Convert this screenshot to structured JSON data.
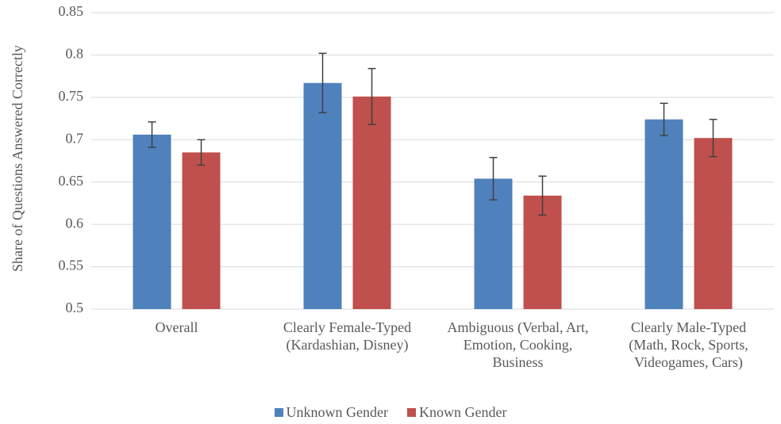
{
  "chart_data": {
    "type": "bar",
    "y_label": "Share of Questions Answered Correctly",
    "categories": [
      "Overall",
      "Clearly Female-Typed (Kardashian, Disney)",
      "Ambiguous (Verbal, Art, Emotion, Cooking, Business",
      "Clearly Male-Typed (Math, Rock, Sports, Videogames, Cars)"
    ],
    "series": [
      {
        "name": "Unknown Gender",
        "color": "#4f81bd",
        "values": [
          0.706,
          0.767,
          0.654,
          0.724
        ],
        "errors": [
          0.015,
          0.035,
          0.025,
          0.019
        ]
      },
      {
        "name": "Known Gender",
        "color": "#c0504d",
        "values": [
          0.685,
          0.751,
          0.634,
          0.702
        ],
        "errors": [
          0.015,
          0.033,
          0.023,
          0.022
        ]
      }
    ],
    "ylim": [
      0.5,
      0.85
    ],
    "yticks": [
      0.5,
      0.55,
      0.6,
      0.65,
      0.7,
      0.75,
      0.8,
      0.85
    ],
    "grid": true,
    "legend": "bottom"
  }
}
